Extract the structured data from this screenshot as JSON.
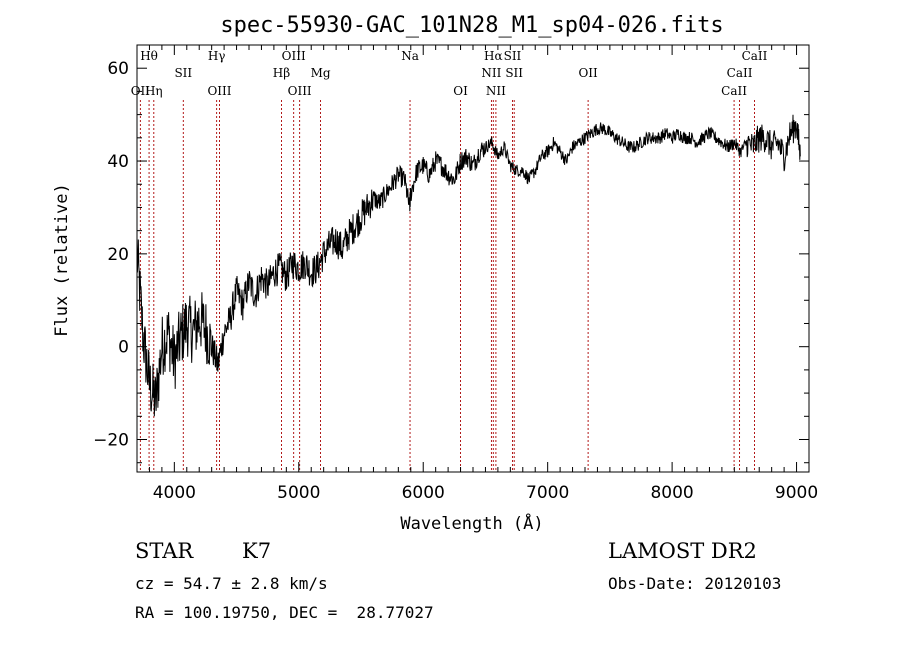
{
  "chart_data": {
    "type": "line",
    "title": "spec-55930-GAC_101N28_M1_sp04-026.fits",
    "xlabel": "Wavelength (Å)",
    "ylabel": "Flux (relative)",
    "xlim": [
      3700,
      9100
    ],
    "ylim": [
      -27,
      65
    ],
    "xticks": [
      4000,
      5000,
      6000,
      7000,
      8000,
      9000
    ],
    "yticks": [
      -20,
      0,
      20,
      40,
      60
    ],
    "grid": false,
    "series": [
      {
        "x": [
          3700,
          3750,
          3800,
          3850,
          3900,
          3950,
          4000,
          4050,
          4100,
          4150,
          4200,
          4250,
          4300,
          4350,
          4400,
          4450,
          4500,
          4550,
          4600,
          4650,
          4700,
          4750,
          4800,
          4850,
          4900,
          4950,
          5000,
          5050,
          5100,
          5150,
          5200,
          5250,
          5300,
          5350,
          5400,
          5450,
          5500,
          5550,
          5600,
          5650,
          5700,
          5750,
          5800,
          5850,
          5890,
          5900,
          5950,
          6000,
          6050,
          6100,
          6150,
          6200,
          6250,
          6300,
          6350,
          6400,
          6450,
          6500,
          6550,
          6600,
          6650,
          6700,
          6750,
          6800,
          6850,
          6900,
          6950,
          7000,
          7050,
          7100,
          7150,
          7200,
          7250,
          7300,
          7350,
          7400,
          7450,
          7500,
          7550,
          7600,
          7650,
          7700,
          7750,
          7800,
          7850,
          7900,
          7950,
          8000,
          8050,
          8100,
          8150,
          8200,
          8250,
          8300,
          8350,
          8400,
          8450,
          8500,
          8550,
          8600,
          8650,
          8700,
          8750,
          8800,
          8850,
          8900,
          8950,
          9000,
          9030
        ],
        "y": [
          20,
          2,
          -8,
          -12,
          0,
          3,
          -3,
          2,
          5,
          3,
          6,
          4,
          0,
          -4,
          3,
          6,
          12,
          9,
          14,
          11,
          15,
          13,
          16,
          17,
          15,
          18,
          17,
          18,
          16,
          17,
          20,
          22,
          23,
          21,
          24,
          26,
          28,
          30,
          32,
          31,
          33,
          35,
          37,
          36,
          30,
          33,
          38,
          39,
          37,
          40,
          39,
          37,
          36,
          40,
          41,
          39,
          42,
          43,
          44,
          41,
          43,
          39,
          38,
          38,
          36,
          38,
          41,
          42,
          44,
          42,
          40,
          43,
          44,
          45,
          46,
          47,
          47,
          46,
          45,
          44,
          43,
          43,
          44,
          45,
          45,
          45,
          46,
          45,
          46,
          45,
          45,
          44,
          45,
          46,
          45,
          44,
          43,
          44,
          42,
          44,
          43,
          45,
          45,
          43,
          44,
          41,
          46,
          48,
          41
        ]
      }
    ],
    "emission_lines": [
      {
        "label": "Hθ",
        "x": 3797,
        "row": 0
      },
      {
        "label": "OII",
        "x": 3727,
        "row": 2
      },
      {
        "label": "Hη",
        "x": 3835,
        "row": 2
      },
      {
        "label": "SII",
        "x": 4072,
        "row": 1
      },
      {
        "label": "Hγ",
        "x": 4340,
        "row": 0
      },
      {
        "label": "OIII",
        "x": 4363,
        "row": 2
      },
      {
        "label": "OIII",
        "x": 4959,
        "row": 0
      },
      {
        "label": "Hβ",
        "x": 4861,
        "row": 1
      },
      {
        "label": "OIII",
        "x": 5007,
        "row": 2
      },
      {
        "label": "Mg",
        "x": 5175,
        "row": 1
      },
      {
        "label": "Na",
        "x": 5894,
        "row": 0
      },
      {
        "label": "OI",
        "x": 6300,
        "row": 2
      },
      {
        "label": "Hα",
        "x": 6563,
        "row": 0
      },
      {
        "label": "NII",
        "x": 6548,
        "row": 1
      },
      {
        "label": "NII",
        "x": 6584,
        "row": 2
      },
      {
        "label": "SII",
        "x": 6717,
        "row": 0
      },
      {
        "label": "SII",
        "x": 6731,
        "row": 1
      },
      {
        "label": "OII",
        "x": 7325,
        "row": 1
      },
      {
        "label": "CaII",
        "x": 8662,
        "row": 0
      },
      {
        "label": "CaII",
        "x": 8542,
        "row": 1
      },
      {
        "label": "CaII",
        "x": 8498,
        "row": 2
      }
    ]
  },
  "info": {
    "class": "STAR",
    "subclass": "K7",
    "cz": "cz = 54.7 ± 2.8 km/s",
    "radec": "RA = 100.19750, DEC =  28.77027",
    "survey": "LAMOST DR2",
    "obsdate": "Obs-Date: 20120103"
  },
  "colors": {
    "spectrum": "#000000",
    "line_markers": "#aa0000"
  }
}
